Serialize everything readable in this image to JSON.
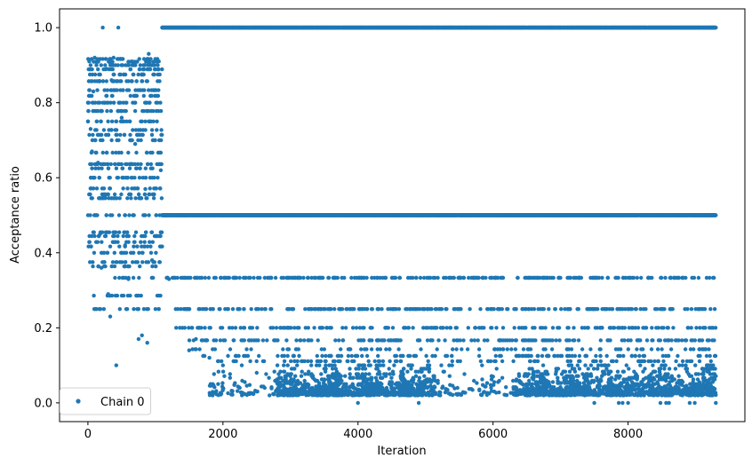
{
  "chart_data": {
    "type": "scatter",
    "xlabel": "Iteration",
    "ylabel": "Acceptance ratio",
    "xlim": [
      -420,
      9730
    ],
    "ylim": [
      -0.05,
      1.05
    ],
    "xticks": [
      0,
      2000,
      4000,
      6000,
      8000
    ],
    "yticks": [
      0.0,
      0.2,
      0.4,
      0.6,
      0.8,
      1.0
    ],
    "xtick_labels": [
      "0",
      "2000",
      "4000",
      "6000",
      "8000"
    ],
    "ytick_labels": [
      "0.0",
      "0.2",
      "0.4",
      "0.6",
      "0.8",
      "1.0"
    ],
    "grid": false,
    "legend_position": "lower-left",
    "series": [
      {
        "name": "Chain 0",
        "color": "#1f77b4",
        "marker": "circle",
        "n_points": 9300,
        "points_shown": [
          [
            0,
            0.8
          ],
          [
            20,
            0.91
          ],
          [
            40,
            0.73
          ],
          [
            60,
            0.67
          ],
          [
            80,
            0.83
          ],
          [
            100,
            0.92
          ],
          [
            120,
            0.5
          ],
          [
            150,
            0.64
          ],
          [
            180,
            0.45
          ],
          [
            200,
            0.36
          ],
          [
            220,
            1.0
          ],
          [
            250,
            0.55
          ],
          [
            280,
            0.89
          ],
          [
            300,
            0.29
          ],
          [
            330,
            0.23
          ],
          [
            350,
            0.86
          ],
          [
            380,
            0.92
          ],
          [
            420,
            0.1
          ],
          [
            450,
            1.0
          ],
          [
            500,
            0.76
          ],
          [
            550,
            0.42
          ],
          [
            600,
            0.33
          ],
          [
            650,
            0.91
          ],
          [
            700,
            0.69
          ],
          [
            750,
            0.17
          ],
          [
            800,
            0.18
          ],
          [
            850,
            0.57
          ],
          [
            880,
            0.16
          ],
          [
            900,
            0.93
          ],
          [
            950,
            0.38
          ],
          [
            1000,
            0.25
          ],
          [
            1050,
            0.91
          ],
          [
            1080,
            0.62
          ],
          [
            1100,
            1.0
          ],
          [
            1150,
            0.5
          ],
          [
            1200,
            0.33
          ],
          [
            1300,
            0.25
          ],
          [
            1400,
            0.2
          ],
          [
            1500,
            0.14
          ],
          [
            1600,
            0.17
          ],
          [
            1800,
            0.12
          ],
          [
            2000,
            0.1
          ],
          [
            2500,
            0.08
          ],
          [
            3000,
            0.05
          ],
          [
            3500,
            0.06
          ],
          [
            4000,
            0.0
          ],
          [
            4500,
            0.05
          ],
          [
            4900,
            0.0
          ],
          [
            5100,
            0.02
          ],
          [
            6000,
            0.07
          ],
          [
            6500,
            0.05
          ],
          [
            7000,
            0.03
          ],
          [
            7500,
            0.0
          ],
          [
            8000,
            0.0
          ],
          [
            8500,
            0.02
          ],
          [
            9300,
            0.0
          ]
        ],
        "levels_after_1100": [
          1.0,
          0.5,
          0.3333,
          0.25,
          0.2,
          0.1667,
          0.1429,
          0.125,
          0.1111,
          0.1,
          0.0909,
          0.0833,
          0.0769,
          0.0714,
          0.0667,
          0.0625,
          0.0588,
          0.0556,
          0.0526,
          0.05,
          0.0476,
          0.0455,
          0.0435,
          0.0417,
          0.04,
          0.0385,
          0.037,
          0.0357,
          0.0345,
          0.0333,
          0.0323,
          0.0313,
          0.0303,
          0.0294,
          0.0286,
          0.0278,
          0.027,
          0.0263,
          0.0256,
          0.025,
          0.0244,
          0.0238,
          0.0233,
          0.0227,
          0.0222,
          0.0217,
          0.0213,
          0.0208,
          0.0204,
          0.02,
          0.0
        ],
        "burn_in_end": 1100,
        "burn_in_range": [
          0.23,
          0.93
        ]
      }
    ]
  }
}
